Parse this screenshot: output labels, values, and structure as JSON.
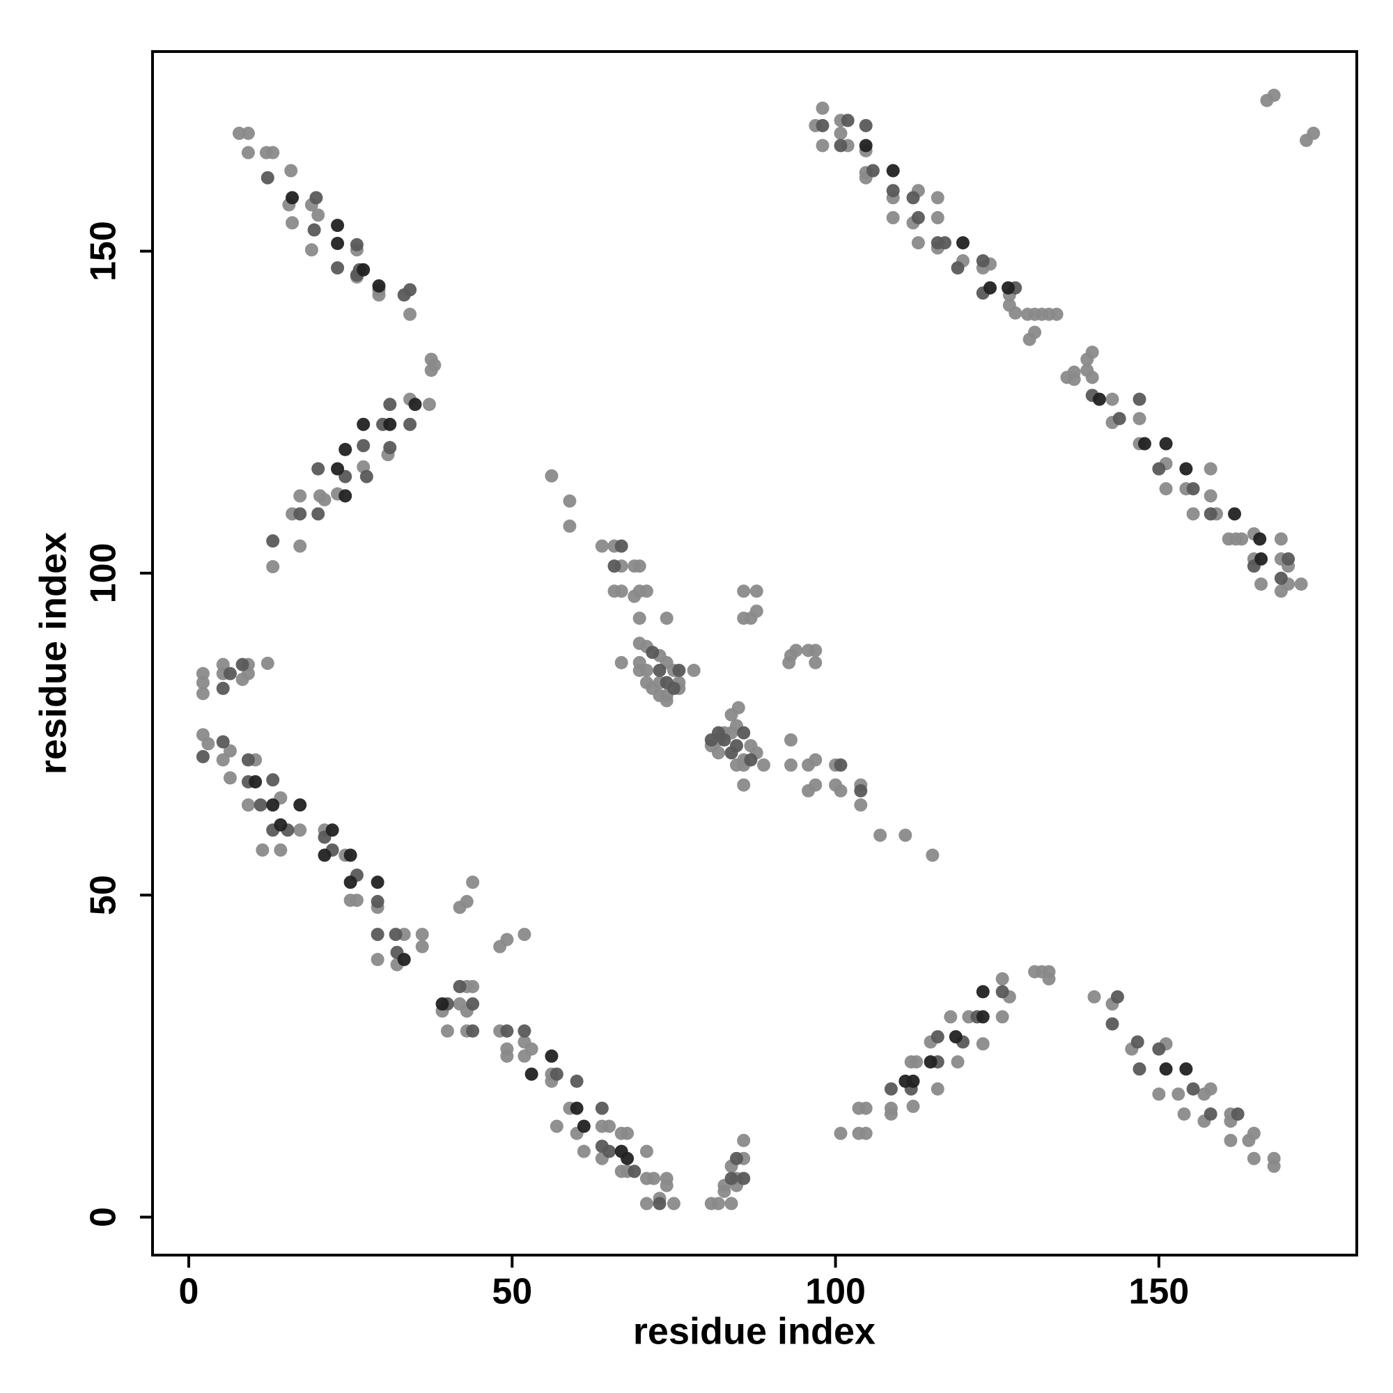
{
  "chart_data": {
    "type": "scatter",
    "xlabel": "residue index",
    "ylabel": "residue index",
    "xlim": [
      -5.6,
      180.6
    ],
    "ylim": [
      -5.9,
      181
    ],
    "xticks": [
      0,
      50,
      100,
      150
    ],
    "yticks": [
      0,
      50,
      100,
      150
    ],
    "series": [
      {
        "color": "#8a8a8a",
        "x": [
          7.8,
          9.2,
          9.2,
          12,
          13,
          15.8,
          15.5,
          16,
          19,
          20,
          19,
          26,
          26,
          29.4,
          29.4,
          34.2,
          13,
          16,
          17.2,
          17.2,
          20.3,
          21,
          23,
          27,
          30.8,
          34.2,
          37.2,
          37.5,
          37.5,
          38,
          2.2,
          2.2,
          2.2,
          5.3,
          5.3,
          8.3,
          9.2,
          9.2,
          12.2,
          2.2,
          3,
          5.3,
          6.4,
          6.4,
          10.3,
          9.2,
          11.4,
          14.2,
          14.2,
          17.2,
          21,
          24.2,
          26,
          25,
          29.2,
          29.2,
          33.3,
          36.1,
          36.1,
          32.2,
          39.2,
          40,
          41.9,
          43,
          43.9,
          43,
          43,
          41.9,
          43,
          43.9,
          48.1,
          49.2,
          51.9,
          48.1,
          49.2,
          49.2,
          51.9,
          51.9,
          53,
          56.1,
          56.1,
          58.9,
          56.9,
          60,
          61.1,
          63.9,
          63.9,
          65,
          66.9,
          67.8,
          66.9,
          67.8,
          70.8,
          70.8,
          70.8,
          71.9,
          72.8,
          73.9,
          73.9,
          75,
          80.8,
          81.9,
          82.8,
          82.8,
          83.9,
          83.9,
          84.7,
          84.7,
          85.8,
          85.8,
          100.8,
          103.6,
          104.7,
          103.6,
          104.7,
          108.6,
          108.6,
          111.7,
          112,
          112.5,
          114.7,
          115.8,
          117.8,
          118.9,
          120.6,
          122.8,
          125.8,
          125.8,
          126.9,
          130.8,
          131.9,
          133,
          133,
          140,
          142.8,
          145.8,
          150,
          151.1,
          153,
          153.9,
          157,
          158,
          157,
          161.1,
          161.1,
          161.1,
          163.9,
          164.7,
          164.7,
          167.8,
          167.8,
          98,
          96.9,
          98,
          100.8,
          100.8,
          101.9,
          104.7,
          104.7,
          104.7,
          108.9,
          108.9,
          112,
          112.8,
          112.8,
          115.8,
          115.8,
          115.8,
          119.7,
          122.8,
          123.9,
          126.9,
          126.9,
          127.8,
          129.7,
          130.8,
          131.9,
          133,
          134.2,
          130.8,
          130,
          135.8,
          136.9,
          136.9,
          138.9,
          138.9,
          139.7,
          139.7,
          142.8,
          142.8,
          147,
          147,
          151.1,
          151.1,
          154.2,
          158,
          158,
          155.3,
          158.9,
          160.8,
          161.9,
          162.8,
          164.7,
          164.7,
          168.9,
          168.9,
          170,
          168.9,
          170,
          165.8,
          172,
          166.7,
          167.8,
          172.8,
          173.9,
          56.1,
          58.9,
          58.9,
          63.9,
          65.8,
          66.9,
          65.8,
          66.9,
          68.9,
          69.7,
          68.9,
          69.7,
          70.8,
          69.7,
          73.9,
          66.9,
          69.7,
          70.8,
          69.7,
          69.7,
          70.8,
          72.8,
          73.9,
          73.9,
          73.9,
          75,
          75.8,
          75.8,
          70.8,
          71.7,
          72.8,
          78.1,
          72.8,
          81.9,
          80.8,
          81.9,
          82.8,
          83.9,
          84.7,
          85.8,
          85.8,
          86.9,
          87.8,
          88.9,
          83.9,
          85,
          85.8,
          84.7,
          85.8,
          87.8,
          85.8,
          86.9,
          87.8,
          92.8,
          93.1,
          93.9,
          95.8,
          96.9,
          96.9,
          93.1,
          93.1,
          95.8,
          96.9,
          95.8,
          96.9,
          100,
          100,
          100.8,
          103.9,
          103.9,
          106.9,
          110.8,
          115
        ],
        "values": [
          168.3,
          168.3,
          165.3,
          165.3,
          165.3,
          162.5,
          157.2,
          154.4,
          157.2,
          155.6,
          150.2,
          150.2,
          146,
          143.2,
          144,
          140.2,
          101,
          109.2,
          112,
          104.2,
          112,
          111.4,
          112.3,
          116.5,
          118.4,
          127,
          126.2,
          133.2,
          131.5,
          132.3,
          84.4,
          83,
          81.3,
          85.8,
          84.4,
          83.5,
          85.8,
          84.4,
          86,
          74.9,
          73.5,
          71,
          72.4,
          68.2,
          71,
          64,
          57,
          65.1,
          57,
          60.1,
          60.1,
          56.2,
          49.2,
          49.2,
          48.1,
          40,
          43.9,
          43.9,
          42,
          39.2,
          32,
          28.9,
          33.1,
          35.8,
          35.8,
          32,
          28.9,
          48.1,
          49,
          52,
          42,
          43.1,
          43.9,
          28.9,
          26.1,
          25,
          27.2,
          25,
          26.1,
          22.2,
          21.1,
          16.9,
          14.1,
          13,
          10.2,
          14.1,
          9.1,
          14.1,
          13,
          13,
          7.1,
          7.1,
          10.2,
          6,
          2.1,
          6,
          2.9,
          6,
          4.9,
          2.1,
          2.1,
          2.1,
          4.9,
          4,
          7.9,
          2.1,
          6,
          4.9,
          9.1,
          11.9,
          13,
          16.9,
          16.9,
          13,
          13,
          16.9,
          16,
          24.1,
          17.2,
          24.1,
          27.2,
          19.9,
          31.1,
          24.1,
          31.1,
          26.9,
          37,
          31.1,
          34.2,
          38.1,
          38.1,
          38.1,
          37,
          34.2,
          33.1,
          26.1,
          19.1,
          26.9,
          19.1,
          16,
          19.1,
          19.9,
          14.9,
          16,
          14.9,
          11.9,
          11.9,
          13,
          9.1,
          9.1,
          7.9,
          172.2,
          169.5,
          166.4,
          170.3,
          168.3,
          166.4,
          165.6,
          162.2,
          161.4,
          158.3,
          155.2,
          154.4,
          159.4,
          151.3,
          158.3,
          155.2,
          150.5,
          148.5,
          147.4,
          148,
          143.2,
          141.6,
          140.4,
          140.2,
          140.2,
          140.2,
          140.2,
          140.2,
          137.4,
          136.3,
          130.4,
          131.2,
          130.1,
          133.2,
          131.5,
          134.3,
          130.4,
          127,
          123.4,
          124,
          120.1,
          117,
          113.1,
          113.1,
          116.2,
          112,
          109.2,
          109.2,
          105.3,
          105.3,
          105.3,
          106.1,
          102.2,
          105.3,
          102.2,
          101.1,
          97.2,
          98.3,
          98.3,
          98.3,
          173.4,
          174.2,
          167.2,
          168.3,
          115.1,
          111.2,
          107.3,
          104.2,
          104.2,
          101.1,
          97.2,
          97.2,
          101.1,
          101.1,
          96.4,
          97.2,
          97.2,
          93,
          93,
          86.1,
          89.1,
          88.6,
          86.1,
          84.9,
          84.9,
          87.2,
          86.1,
          81,
          80.2,
          84.9,
          83,
          82.1,
          83,
          82.1,
          81,
          84.9,
          83,
          74.1,
          73.2,
          72.1,
          75.2,
          75.2,
          76.3,
          71,
          70.2,
          73.2,
          72.1,
          70.2,
          78,
          79.1,
          67.1,
          70.2,
          97.2,
          97.2,
          93,
          93,
          94.1,
          86.1,
          87.2,
          88,
          88,
          88,
          86.1,
          74.1,
          70.2,
          70.2,
          71,
          66.2,
          67.1,
          70.2,
          67.1,
          66.2,
          67.1,
          64,
          59.3,
          59.3,
          56.2
        ]
      },
      {
        "color": "#5a5a5a",
        "x": [
          12.2,
          19.7,
          19.4,
          26,
          26.4,
          33.3,
          34.2,
          13,
          17.2,
          20,
          20,
          27,
          27.5,
          30,
          31.1,
          34.2,
          8.3,
          5.3,
          6.4,
          2.2,
          5.3,
          9.2,
          9.2,
          11.1,
          13,
          15.3,
          21,
          22.2,
          26,
          29.2,
          29.2,
          32,
          32.2,
          40,
          43.9,
          43.9,
          41.9,
          49.2,
          51.9,
          56.9,
          60,
          63.9,
          63.9,
          65,
          68.9,
          72.8,
          83.9,
          84.7,
          85.8,
          108.6,
          111.7,
          115.8,
          119.7,
          121.9,
          125.8,
          115.8,
          146.7,
          147,
          142.8,
          143.6,
          150,
          155.3,
          158,
          162.2,
          98,
          101.9,
          100.8,
          104.7,
          105.8,
          108.9,
          112,
          112.8,
          115.8,
          116.9,
          118.9,
          122.8,
          127.8,
          122.8,
          139.7,
          143.9,
          147,
          150,
          155.3,
          158,
          164.7,
          170,
          168.9,
          66.9,
          65.8,
          71.7,
          72.8,
          73.9,
          75,
          75.8,
          81.9,
          82.8,
          83.9,
          84.7,
          85.8,
          86.9,
          100.8,
          103.9,
          80.8,
          24.2,
          31.1,
          13,
          23,
          26
        ],
        "values": [
          161.4,
          158.3,
          153.3,
          151,
          147.1,
          143.2,
          144,
          105,
          109.2,
          116.2,
          109.2,
          119.8,
          115,
          123.1,
          119.5,
          123.1,
          85.8,
          82.1,
          84.4,
          71.5,
          73.8,
          71,
          67.6,
          64,
          67.9,
          60.1,
          59,
          57,
          53.1,
          49,
          43.9,
          43.9,
          41.1,
          33.1,
          33.1,
          28.9,
          35.8,
          28.9,
          28.9,
          22.2,
          21.1,
          16.9,
          11,
          10.2,
          7.1,
          2.1,
          6,
          9.1,
          6,
          19.9,
          19.9,
          24.1,
          27.2,
          31.1,
          35,
          28,
          27.2,
          23,
          30,
          34.2,
          26.1,
          19.9,
          16,
          16,
          169.5,
          170.3,
          166.4,
          169.5,
          162.5,
          159.4,
          158.3,
          155.2,
          151.3,
          151.3,
          147.4,
          148.5,
          144.3,
          143.5,
          127.6,
          124,
          127,
          116.2,
          113.1,
          109.2,
          101.1,
          102.2,
          99.2,
          104.2,
          101.1,
          87.7,
          84.9,
          83,
          82.1,
          84.9,
          75.2,
          74.1,
          72.1,
          73.2,
          75.2,
          71,
          70.2,
          66.2,
          74.1,
          115,
          126.2,
          60.1,
          147.4,
          146.3
        ]
      },
      {
        "color": "#222222",
        "x": [
          16,
          23,
          23,
          27,
          29.4,
          24.2,
          27,
          31.1,
          23,
          35,
          24.2,
          10.3,
          13,
          14.2,
          17.2,
          21,
          25,
          25,
          33.3,
          39.2,
          53,
          56.1,
          60,
          61.1,
          66.9,
          67.8,
          114.7,
          118.6,
          122.8,
          122.8,
          112,
          151.1,
          154.2,
          108.9,
          104.7,
          119.7,
          123.9,
          126.7,
          140.8,
          147.8,
          151.1,
          154.2,
          161.7,
          165.6,
          165.8,
          22.2,
          29.2,
          110.8
        ],
        "values": [
          158.3,
          154,
          151.2,
          147.1,
          144.6,
          119.2,
          123.1,
          123.1,
          116.2,
          126.2,
          112,
          67.6,
          64,
          60.9,
          64,
          56.2,
          56.2,
          52,
          40,
          33.1,
          22.2,
          25,
          16.9,
          14.1,
          10.2,
          9.1,
          24.1,
          28,
          35,
          31.1,
          21.1,
          23,
          23,
          162.5,
          166.4,
          151.3,
          144.3,
          144.3,
          127,
          120.1,
          120.1,
          116.2,
          109.2,
          105.3,
          102.2,
          60.1,
          52,
          21.1
        ]
      }
    ]
  }
}
